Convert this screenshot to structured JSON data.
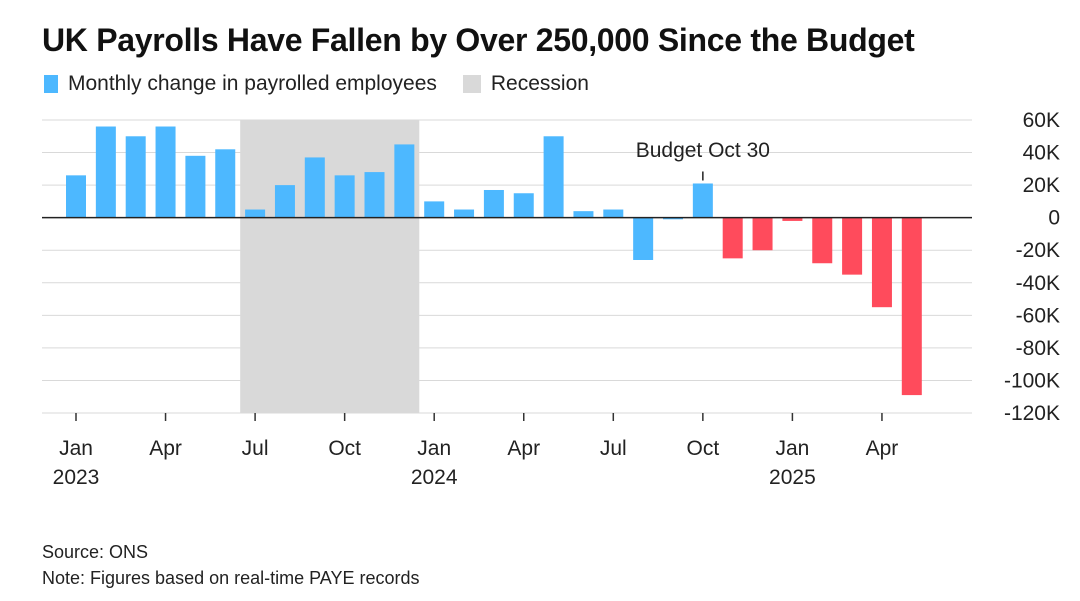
{
  "title": "UK Payrolls Have Fallen by Over 250,000 Since the Budget",
  "legend": {
    "series_label": "Monthly change in payrolled employees",
    "recession_label": "Recession"
  },
  "footer": {
    "source": "Source: ONS",
    "note": "Note: Figures based on real-time PAYE records"
  },
  "colors": {
    "positive": "#4db8ff",
    "negative": "#ff4b5c",
    "recession": "#d9d9d9",
    "grid": "#d9d9d9",
    "zero_line": "#222222"
  },
  "chart_data": {
    "type": "bar",
    "title": "UK Payrolls Have Fallen by Over 250,000 Since the Budget",
    "categories": [
      "Jan 2023",
      "Feb 2023",
      "Mar 2023",
      "Apr 2023",
      "May 2023",
      "Jun 2023",
      "Jul 2023",
      "Aug 2023",
      "Sep 2023",
      "Oct 2023",
      "Nov 2023",
      "Dec 2023",
      "Jan 2024",
      "Feb 2024",
      "Mar 2024",
      "Apr 2024",
      "May 2024",
      "Jun 2024",
      "Jul 2024",
      "Aug 2024",
      "Sep 2024",
      "Oct 2024",
      "Nov 2024",
      "Dec 2024",
      "Jan 2025",
      "Feb 2025",
      "Mar 2025",
      "Apr 2025",
      "May 2025"
    ],
    "series": [
      {
        "name": "Monthly change in payrolled employees",
        "values": [
          26000,
          56000,
          50000,
          56000,
          38000,
          42000,
          5000,
          20000,
          37000,
          26000,
          28000,
          45000,
          10000,
          5000,
          17000,
          15000,
          50000,
          4000,
          5000,
          -26000,
          -1000,
          21000,
          -25000,
          -20000,
          -2000,
          -28000,
          -35000,
          -55000,
          -109000
        ]
      }
    ],
    "recession": {
      "start": "Jul 2023",
      "end": "Dec 2023",
      "label": "Recession"
    },
    "annotations": [
      {
        "text": "Budget Oct 30",
        "x": "Oct 2024"
      }
    ],
    "ylim": [
      -120000,
      60000
    ],
    "yticks": [
      60000,
      40000,
      20000,
      0,
      -20000,
      -40000,
      -60000,
      -80000,
      -100000,
      -120000
    ],
    "ytick_labels": [
      "60K",
      "40K",
      "20K",
      "0",
      "-20K",
      "-40K",
      "-60K",
      "-80K",
      "-100K",
      "-120K"
    ],
    "y_axis_side": "right",
    "xticks": [
      {
        "month": "Jan 2023",
        "label": "Jan",
        "year": "2023"
      },
      {
        "month": "Apr 2023",
        "label": "Apr",
        "year": ""
      },
      {
        "month": "Jul 2023",
        "label": "Jul",
        "year": ""
      },
      {
        "month": "Oct 2023",
        "label": "Oct",
        "year": ""
      },
      {
        "month": "Jan 2024",
        "label": "Jan",
        "year": "2024"
      },
      {
        "month": "Apr 2024",
        "label": "Apr",
        "year": ""
      },
      {
        "month": "Jul 2024",
        "label": "Jul",
        "year": ""
      },
      {
        "month": "Oct 2024",
        "label": "Oct",
        "year": ""
      },
      {
        "month": "Jan 2025",
        "label": "Jan",
        "year": "2025"
      },
      {
        "month": "Apr 2025",
        "label": "Apr",
        "year": ""
      }
    ],
    "grid": true,
    "legend_position": "top-left",
    "bar_colors": [
      "positive",
      "positive",
      "positive",
      "positive",
      "positive",
      "positive",
      "positive",
      "positive",
      "positive",
      "positive",
      "positive",
      "positive",
      "positive",
      "positive",
      "positive",
      "positive",
      "positive",
      "positive",
      "positive",
      "positive",
      "positive",
      "positive",
      "negative",
      "negative",
      "negative",
      "negative",
      "negative",
      "negative",
      "negative"
    ]
  }
}
